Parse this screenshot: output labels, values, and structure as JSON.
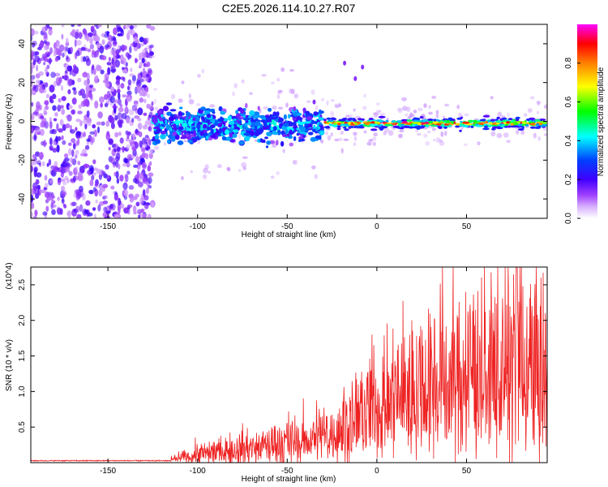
{
  "title": "C2E5.2026.114.10.27.R07",
  "chart_data": [
    {
      "type": "heatmap",
      "name": "spectrogram",
      "title": "C2E5.2026.114.10.27.R07",
      "xlabel": "Height of straight line (km)",
      "ylabel": "Frequency (Hz)",
      "xlim": [
        -193,
        95
      ],
      "ylim": [
        -50,
        50
      ],
      "xticks": [
        -150,
        -100,
        -50,
        0,
        50
      ],
      "yticks": [
        -40,
        -20,
        0,
        20,
        40
      ],
      "colorbar": {
        "label": "Normalized spectral amplitude",
        "range": [
          0,
          1
        ],
        "ticks": [
          "0.0",
          "0.2",
          "0.4",
          "0.6",
          "0.8"
        ],
        "stops": [
          "#ffffff",
          "#c080ff",
          "#8000ff",
          "#0000ff",
          "#00ffff",
          "#00ff00",
          "#ffff00",
          "#ff8000",
          "#ff0000",
          "#ff00ff"
        ]
      },
      "regions": [
        {
          "x": [
            -193,
            -125
          ],
          "freq_center": 0,
          "freq_spread": 50,
          "amplitude": 0.15,
          "desc": "diffuse scatter"
        },
        {
          "x": [
            -125,
            -30
          ],
          "freq_center": -2,
          "freq_spread": 8,
          "amplitude": 0.35
        },
        {
          "x": [
            -30,
            95
          ],
          "freq_center": -1,
          "freq_spread": 2.5,
          "amplitude": 0.85
        }
      ]
    },
    {
      "type": "line",
      "name": "snr",
      "xlabel": "Height of straight line (km)",
      "ylabel": "SNR (10 * v/v)",
      "y_multiplier": "(x10^4)",
      "xlim": [
        -193,
        95
      ],
      "ylim": [
        0,
        2.75
      ],
      "xticks": [
        -150,
        -100,
        -50,
        0,
        50
      ],
      "yticks": [
        0.5,
        1.0,
        1.5,
        2.0,
        2.5
      ],
      "color": "#ee2222",
      "envelope_points": [
        {
          "x": -193,
          "y": 0.02
        },
        {
          "x": -150,
          "y": 0.02
        },
        {
          "x": -120,
          "y": 0.03
        },
        {
          "x": -110,
          "y": 0.08
        },
        {
          "x": -100,
          "y": 0.14
        },
        {
          "x": -80,
          "y": 0.22
        },
        {
          "x": -60,
          "y": 0.3
        },
        {
          "x": -40,
          "y": 0.4
        },
        {
          "x": -20,
          "y": 0.6
        },
        {
          "x": -10,
          "y": 0.8
        },
        {
          "x": 0,
          "y": 1.0
        },
        {
          "x": 10,
          "y": 1.15
        },
        {
          "x": 25,
          "y": 1.3
        },
        {
          "x": 40,
          "y": 1.45
        },
        {
          "x": 55,
          "y": 1.55
        },
        {
          "x": 70,
          "y": 1.6
        },
        {
          "x": 80,
          "y": 1.65
        },
        {
          "x": 95,
          "y": 1.5
        }
      ],
      "peak": {
        "x": 78,
        "y": 2.75
      }
    }
  ]
}
